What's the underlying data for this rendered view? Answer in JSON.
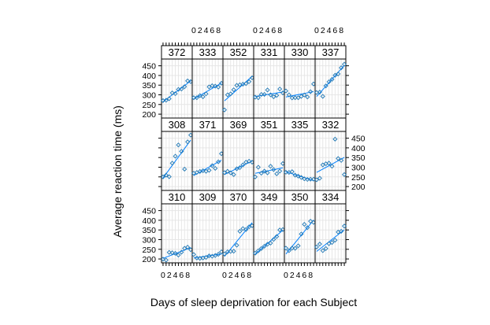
{
  "chart_data": {
    "type": "scatter",
    "title": "",
    "xlabel": "Days of sleep deprivation for each Subject",
    "ylabel": "Average reaction time (ms)",
    "x_ticks": [
      "0",
      "2",
      "4",
      "6",
      "8"
    ],
    "y_ticks": [
      "200",
      "250",
      "300",
      "350",
      "400",
      "450"
    ],
    "xlim": [
      -0.5,
      9.5
    ],
    "ylim": [
      180,
      485
    ],
    "grid": true,
    "layout": {
      "rows": 3,
      "cols": 6
    },
    "colors": {
      "points": "#0080ff",
      "line": "#0080ff",
      "points_dark": "#1f77b4"
    },
    "x": [
      0,
      1,
      2,
      3,
      4,
      5,
      6,
      7,
      8,
      9
    ],
    "panels": [
      {
        "subject": "372",
        "row": 0,
        "values": [
          270,
          272,
          280,
          310,
          306,
          328,
          330,
          342,
          372,
          368
        ]
      },
      {
        "subject": "333",
        "row": 0,
        "values": [
          285,
          285,
          296,
          290,
          305,
          341,
          347,
          345,
          340,
          360
        ]
      },
      {
        "subject": "352",
        "row": 0,
        "values": [
          222,
          300,
          305,
          326,
          349,
          352,
          355,
          358,
          368,
          388
        ]
      },
      {
        "subject": "331",
        "row": 0,
        "values": [
          288,
          285,
          302,
          302,
          325,
          300,
          290,
          297,
          330,
          310
        ]
      },
      {
        "subject": "330",
        "row": 0,
        "values": [
          320,
          300,
          284,
          285,
          285,
          292,
          299,
          289,
          316,
          356
        ]
      },
      {
        "subject": "337",
        "row": 0,
        "values": [
          312,
          314,
          292,
          346,
          367,
          380,
          401,
          408,
          440,
          458
        ]
      },
      {
        "subject": "308",
        "row": 1,
        "values": [
          250,
          259,
          251,
          321,
          357,
          415,
          382,
          290,
          431,
          466
        ]
      },
      {
        "subject": "371",
        "row": 1,
        "values": [
          269,
          273,
          278,
          282,
          279,
          284,
          308,
          294,
          328,
          370
        ]
      },
      {
        "subject": "369",
        "row": 1,
        "values": [
          272,
          279,
          271,
          262,
          292,
          298,
          312,
          326,
          331,
          326
        ]
      },
      {
        "subject": "351",
        "row": 1,
        "values": [
          250,
          300,
          269,
          280,
          271,
          305,
          288,
          266,
          280,
          319
        ]
      },
      {
        "subject": "335",
        "row": 1,
        "values": [
          274,
          273,
          277,
          259,
          254,
          247,
          240,
          237,
          238,
          238
        ]
      },
      {
        "subject": "332",
        "row": 1,
        "values": [
          235,
          243,
          312,
          318,
          321,
          305,
          445,
          345,
          335,
          262
        ]
      },
      {
        "subject": "310",
        "row": 2,
        "values": [
          199,
          194,
          234,
          232,
          229,
          220,
          235,
          255,
          261,
          248
        ]
      },
      {
        "subject": "309",
        "row": 2,
        "values": [
          223,
          205,
          203,
          205,
          208,
          216,
          214,
          218,
          224,
          237
        ]
      },
      {
        "subject": "370",
        "row": 2,
        "values": [
          226,
          237,
          239,
          240,
          271,
          343,
          357,
          352,
          366,
          372
        ]
      },
      {
        "subject": "349",
        "row": 2,
        "values": [
          230,
          242,
          254,
          266,
          276,
          282,
          301,
          316,
          350,
          352
        ]
      },
      {
        "subject": "350",
        "row": 2,
        "values": [
          256,
          243,
          256,
          255,
          268,
          329,
          379,
          362,
          395,
          389
        ]
      },
      {
        "subject": "334",
        "row": 2,
        "values": [
          262,
          277,
          243,
          254,
          279,
          285,
          297,
          339,
          343,
          370
        ]
      }
    ]
  }
}
